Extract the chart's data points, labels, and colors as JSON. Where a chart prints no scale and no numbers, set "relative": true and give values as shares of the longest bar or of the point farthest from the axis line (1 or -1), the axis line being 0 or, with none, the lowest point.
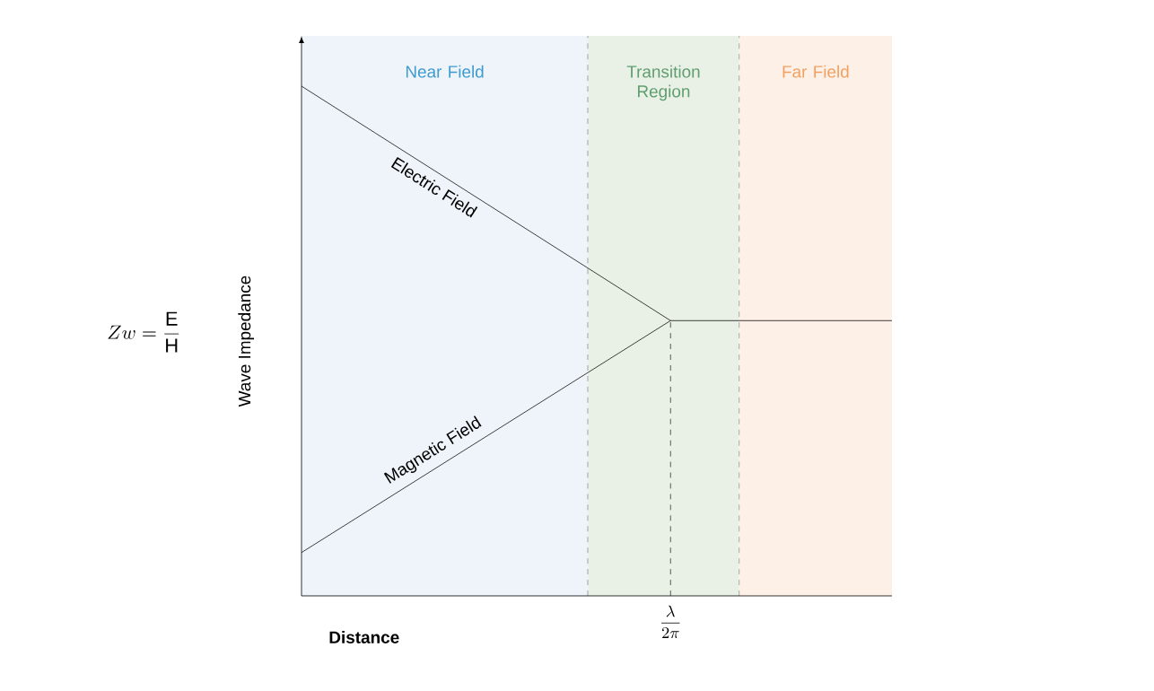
{
  "chart_data": {
    "type": "line",
    "relative": true,
    "xlabel": "Distance",
    "ylabel": "Wave Impedance",
    "annotations": [
      "Zw=\\frac{\\mathrm{E}}{\\mathrm{H}}",
      "\\frac{\\lambda}{2\\pi}",
      "Near Field",
      "Transition Region",
      "Far Field"
    ],
    "categories": [
      null,
      null,
      null,
      null,
      null,
      null,
      null,
      null,
      null
    ],
    "series": [
      {
        "name": "Electric Field",
        "color": "#111111",
        "values": [
          1,
          0.908,
          0.816,
          0.724,
          0.632,
          0.54,
          0.54,
          0.54,
          0.54
        ]
      },
      {
        "name": "Magnetic Field",
        "color": "#111111",
        "values": [
          0.085,
          0.176,
          0.267,
          0.358,
          0.449,
          0.54,
          null,
          null,
          null
        ]
      }
    ]
  }
}
